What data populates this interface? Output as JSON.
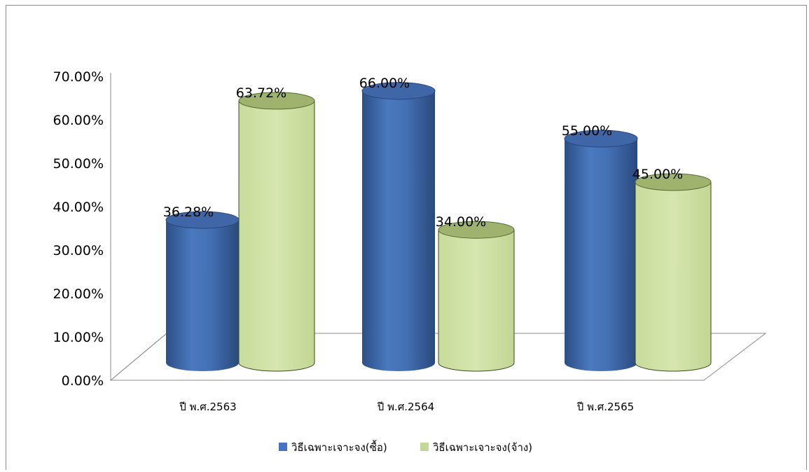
{
  "chart_data": {
    "type": "bar",
    "style": "3d-cylinder",
    "categories": [
      "ปี พ.ศ.2563",
      "ปี พ.ศ.2564",
      "ปี พ.ศ.2565"
    ],
    "series": [
      {
        "name": "วิธีเฉพาะเจาะจง(ซื้อ)",
        "values": [
          36.28,
          66.0,
          55.0
        ],
        "data_labels": [
          "36.28%",
          "66.00%",
          "55.00%"
        ],
        "color": "#4472c4"
      },
      {
        "name": "วิธีเฉพาะเจาะจง(จ้าง)",
        "values": [
          63.72,
          34.0,
          45.0
        ],
        "data_labels": [
          "63.72%",
          "34.00%",
          "45.00%"
        ],
        "color": "#c4d79b"
      }
    ],
    "yticks": [
      "0.00%",
      "10.00%",
      "20.00%",
      "30.00%",
      "40.00%",
      "50.00%",
      "60.00%",
      "70.00%"
    ],
    "ylim": [
      0,
      70
    ],
    "grid": false,
    "legend_position": "bottom"
  }
}
